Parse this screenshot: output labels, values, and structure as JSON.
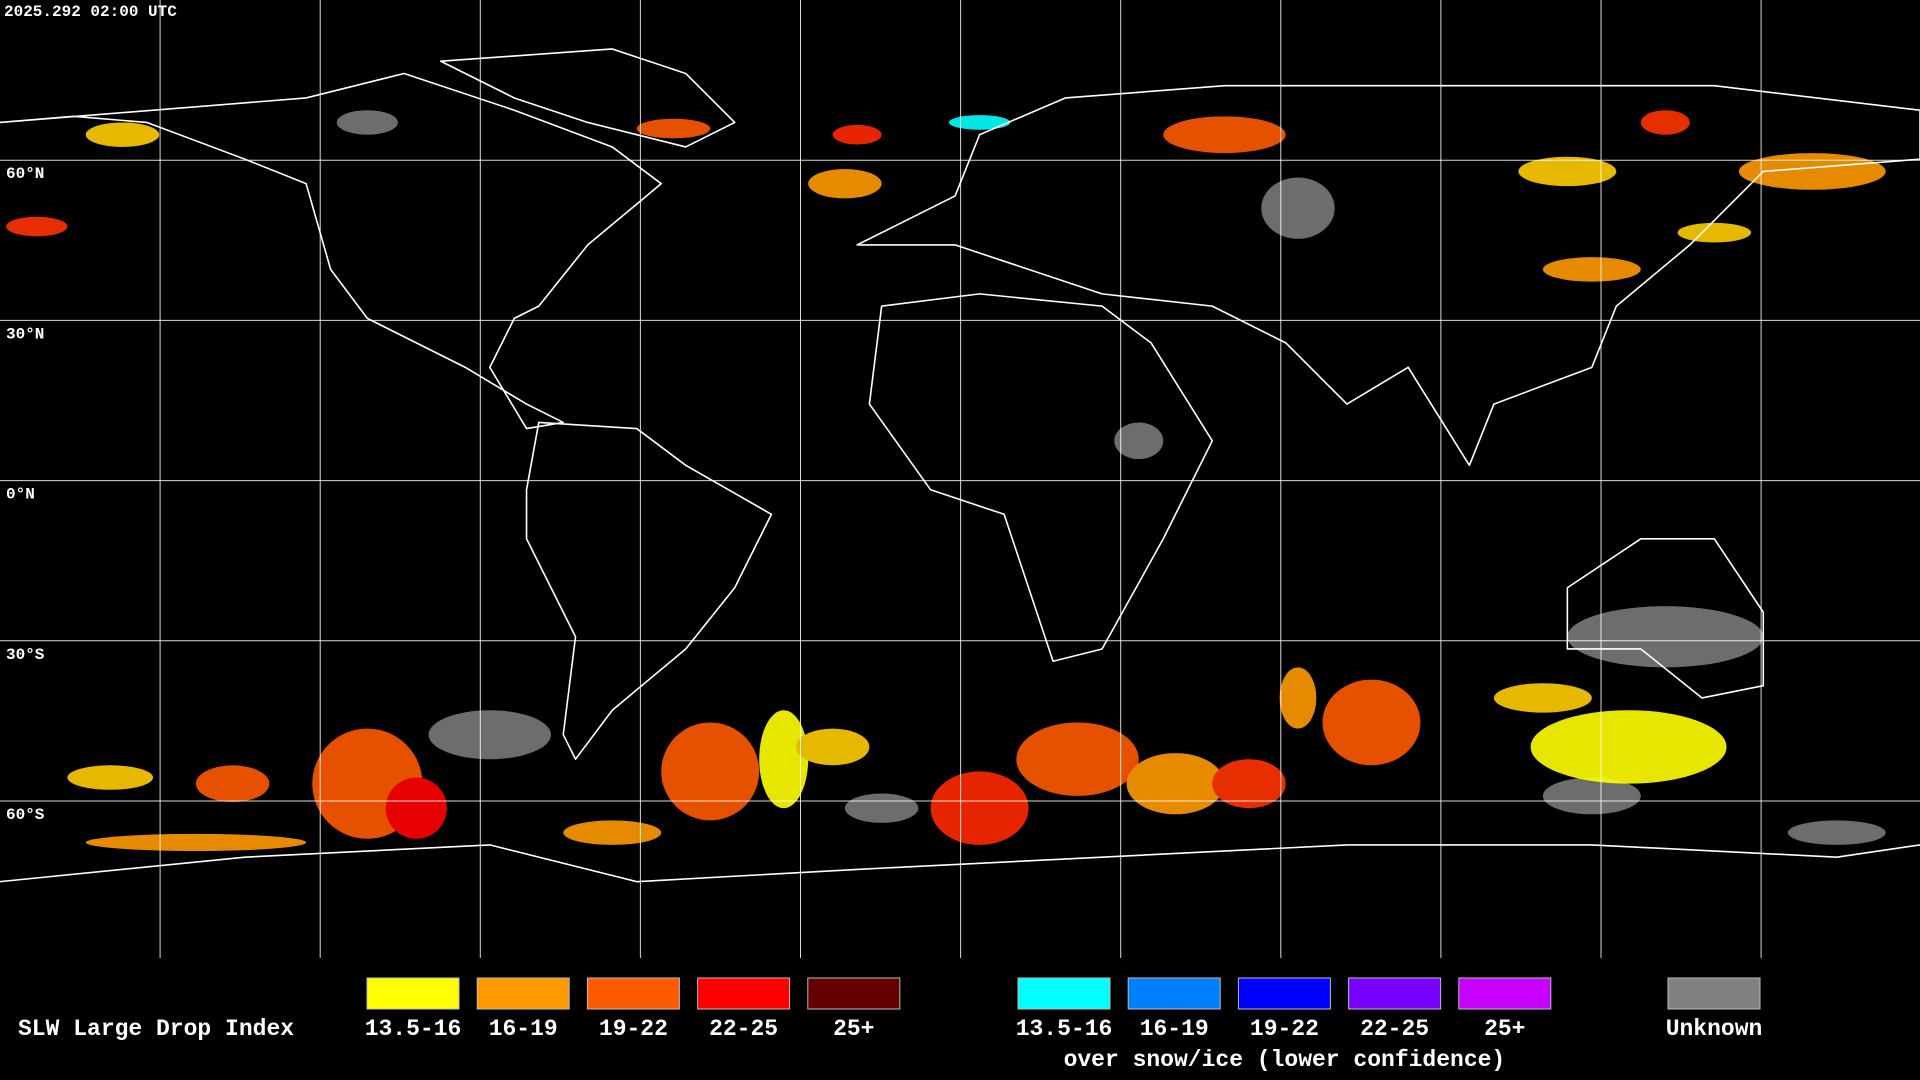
{
  "timestamp": "2025.292 02:00 UTC",
  "latitude_labels": [
    "60°N",
    "30°N",
    "0°N",
    "30°S",
    "60°S"
  ],
  "legend": {
    "title": "SLW Large Drop Index",
    "groups": [
      {
        "items": [
          {
            "label": "13.5-16",
            "color": "#ffff00"
          },
          {
            "label": "16-19",
            "color": "#ff9900"
          },
          {
            "label": "19-22",
            "color": "#ff5a00"
          },
          {
            "label": "22-25",
            "color": "#ff0000"
          },
          {
            "label": "25+",
            "color": "#640000"
          }
        ]
      },
      {
        "items": [
          {
            "label": "13.5-16",
            "color": "#00ffff"
          },
          {
            "label": "16-19",
            "color": "#0080ff"
          },
          {
            "label": "19-22",
            "color": "#0000ff"
          },
          {
            "label": "22-25",
            "color": "#7800ff"
          },
          {
            "label": "25+",
            "color": "#c800ff"
          }
        ],
        "caption": "over snow/ice (lower confidence)"
      },
      {
        "items": [
          {
            "label": "Unknown",
            "color": "#808080"
          }
        ]
      }
    ]
  }
}
